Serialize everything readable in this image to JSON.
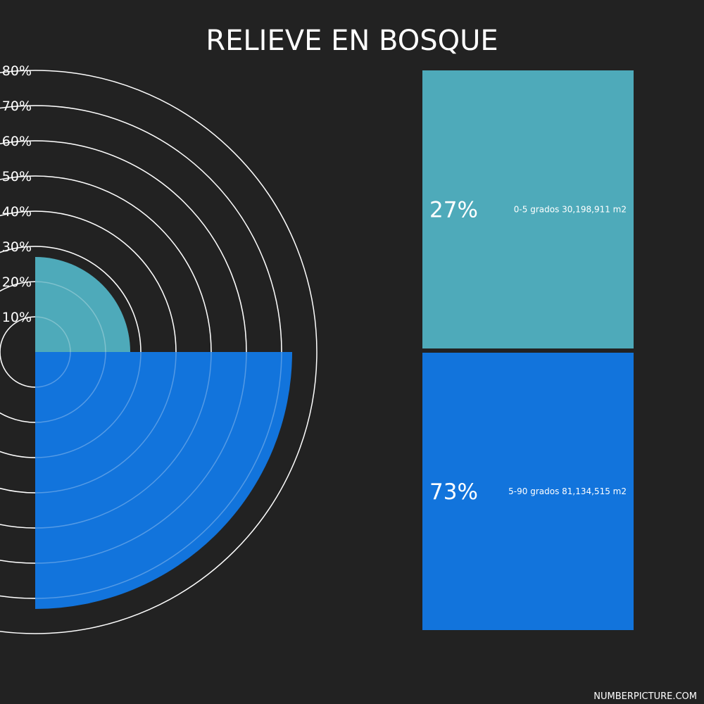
{
  "colors": {
    "background": "#222222",
    "series_1": "#4eaaba",
    "series_2": "#1274dc",
    "text": "#ffffff",
    "ring": "#ffffff"
  },
  "footer": "NUMBERPICTURE.COM",
  "chart_data": {
    "type": "pie",
    "title": "RELIEVE EN BOSQUE",
    "radial_max": 80,
    "radial_ticks": [
      {
        "value": 10,
        "label": "10%"
      },
      {
        "value": 20,
        "label": "20%"
      },
      {
        "value": 30,
        "label": "30%"
      },
      {
        "value": 40,
        "label": "40%"
      },
      {
        "value": 50,
        "label": "50%"
      },
      {
        "value": 60,
        "label": "60%"
      },
      {
        "value": 70,
        "label": "70%"
      },
      {
        "value": 80,
        "label": "80%"
      }
    ],
    "series": [
      {
        "value": 27,
        "percent_label": "27%",
        "description": "0-5 grados 30,198,911 m2",
        "color": "#4eaaba"
      },
      {
        "value": 73,
        "percent_label": "73%",
        "description": "5-90 grados 81,134,515 m2",
        "color": "#1274dc"
      }
    ]
  }
}
